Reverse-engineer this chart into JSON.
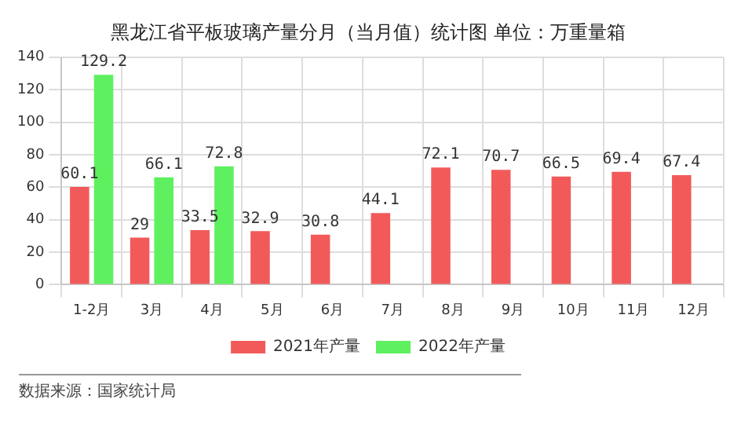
{
  "chart_data": {
    "type": "bar",
    "title": "黑龙江省平板玻璃产量分月（当月值）统计图 单位：万重量箱",
    "categories": [
      "1-2月",
      "3月",
      "4月",
      "5月",
      "6月",
      "7月",
      "8月",
      "9月",
      "10月",
      "11月",
      "12月"
    ],
    "series": [
      {
        "name": "2021年产量",
        "color": "#f25a5a",
        "values": [
          60.1,
          29,
          33.5,
          32.9,
          30.8,
          44.1,
          72.1,
          70.7,
          66.5,
          69.4,
          67.4
        ]
      },
      {
        "name": "2022年产量",
        "color": "#5ef05e",
        "values": [
          129.2,
          66.1,
          72.8,
          null,
          null,
          null,
          null,
          null,
          null,
          null,
          null
        ]
      }
    ],
    "ylim": [
      0,
      140
    ],
    "yticks": [
      0,
      20,
      40,
      60,
      80,
      100,
      120,
      140
    ],
    "grid": true,
    "legend": "bottom",
    "data_labels": true,
    "annotations": [
      "数据来源：国家统计局"
    ]
  }
}
